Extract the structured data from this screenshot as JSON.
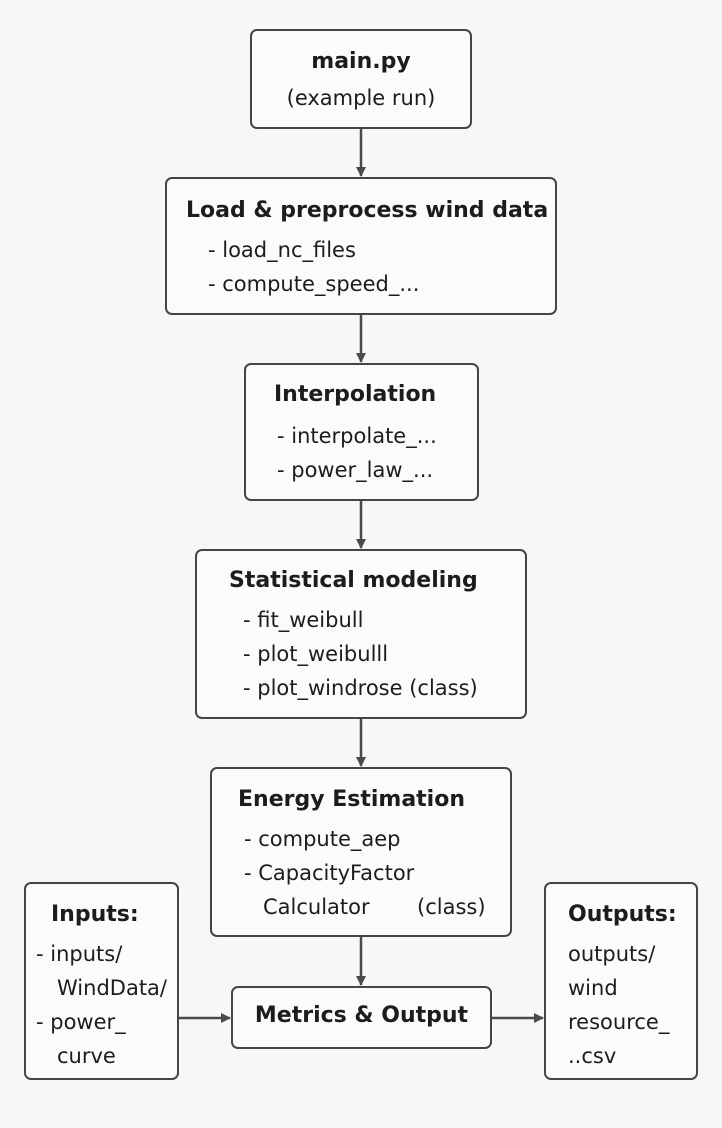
{
  "main": {
    "title": "main.py",
    "subtitle": "(example run)"
  },
  "load": {
    "title": "Load & preprocess wind data",
    "items": [
      "- load_nc_files",
      "- compute_speed_..."
    ]
  },
  "interp": {
    "title": "Interpolation",
    "items": [
      "- interpolate_...",
      "- power_law_..."
    ]
  },
  "stats": {
    "title": "Statistical modeling",
    "items": [
      "- fit_weibull",
      "- plot_weibulll",
      "- plot_windrose (class)"
    ]
  },
  "energy": {
    "title": "Energy Estimation",
    "items": [
      "- compute_aep",
      "- CapacityFactor",
      "Calculator",
      "(class)"
    ]
  },
  "inputs": {
    "title": "Inputs:",
    "items": [
      "- inputs/",
      "WindData/",
      "- power_",
      "curve"
    ]
  },
  "metrics": {
    "title": "Metrics & Output"
  },
  "outputs": {
    "title": "Outputs:",
    "items": [
      "outputs/",
      "wind",
      "resource_",
      "..csv"
    ]
  },
  "colors": {
    "border": "#454545",
    "arrow": "#4a4a4a",
    "background": "#f7f7f7"
  }
}
